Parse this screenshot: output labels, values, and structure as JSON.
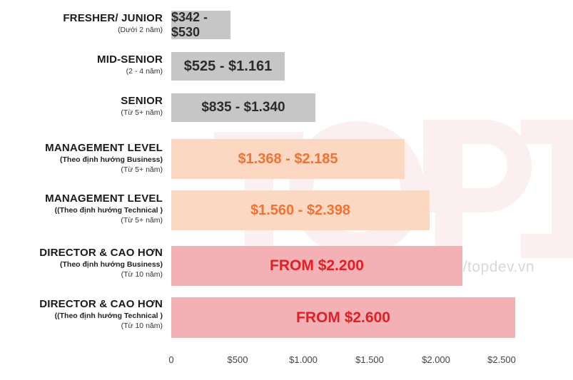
{
  "watermark": {
    "brand": "TOPDEV",
    "url": "https://topdev.vn"
  },
  "colors": {
    "gray": "#c6c6c6",
    "peach": "#fcd8c2",
    "pink": "#f3b1b5"
  },
  "chart_data": {
    "type": "bar",
    "orientation": "horizontal",
    "title": "",
    "xlabel": "",
    "ylabel": "",
    "xlim": [
      0,
      2600
    ],
    "grid": false,
    "legend": "none",
    "x_ticks": [
      "0",
      "$500",
      "$1.000",
      "$1.500",
      "$2.000",
      "$2.500"
    ],
    "categories": [
      {
        "name": "FRESHER/ JUNIOR",
        "sublines": [
          "(Dưới 2 năm)"
        ]
      },
      {
        "name": "MID-SENIOR",
        "sublines": [
          "(2 - 4 năm)"
        ]
      },
      {
        "name": "SENIOR",
        "sublines": [
          "(Từ 5+ năm)"
        ]
      },
      {
        "name": "MANAGEMENT LEVEL",
        "sublines": [
          "(Theo định hướng Business)",
          "(Từ 5+ năm)"
        ]
      },
      {
        "name": "MANAGEMENT LEVEL",
        "sublines": [
          "((Theo định hướng Technical )",
          "(Từ 5+ năm)"
        ]
      },
      {
        "name": "DIRECTOR & CAO HƠN",
        "sublines": [
          "(Theo định hướng Business)",
          "(Từ 10 năm)"
        ]
      },
      {
        "name": "DIRECTOR & CAO HƠN",
        "sublines": [
          "((Theo định hướng Technical )",
          "(Từ 10 năm)"
        ]
      }
    ],
    "values": [
      450,
      855,
      1090,
      1765,
      1955,
      2200,
      2600
    ],
    "bar_labels": [
      "$342 - $530",
      "$525 - $1.161",
      "$835 - $1.340",
      "$1.368 - $2.185",
      "$1.560 - $2.398",
      "FROM $2.200",
      "FROM $2.600"
    ],
    "bar_colors": [
      "gray",
      "gray",
      "gray",
      "peach",
      "peach",
      "pink",
      "pink"
    ]
  }
}
